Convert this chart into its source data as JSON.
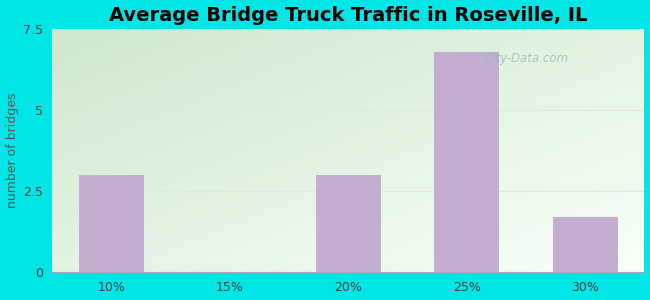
{
  "title": "Average Bridge Truck Traffic in Roseville, IL",
  "categories": [
    "10%",
    "15%",
    "20%",
    "25%",
    "30%"
  ],
  "values": [
    3.0,
    0,
    3.0,
    6.8,
    1.7
  ],
  "bar_color": "#c4aed0",
  "bar_width": 0.55,
  "ylabel": "number of bridges",
  "ylim": [
    0,
    7.5
  ],
  "yticks": [
    0,
    2.5,
    5,
    7.5
  ],
  "title_fontsize": 14,
  "ylabel_fontsize": 9,
  "background_outer": "#00e5e5",
  "gradient_top_left": "#cde8cd",
  "gradient_bottom_right": "#f0f5f0",
  "grid_color": "#e0e8e0",
  "watermark": "City-Data.com"
}
